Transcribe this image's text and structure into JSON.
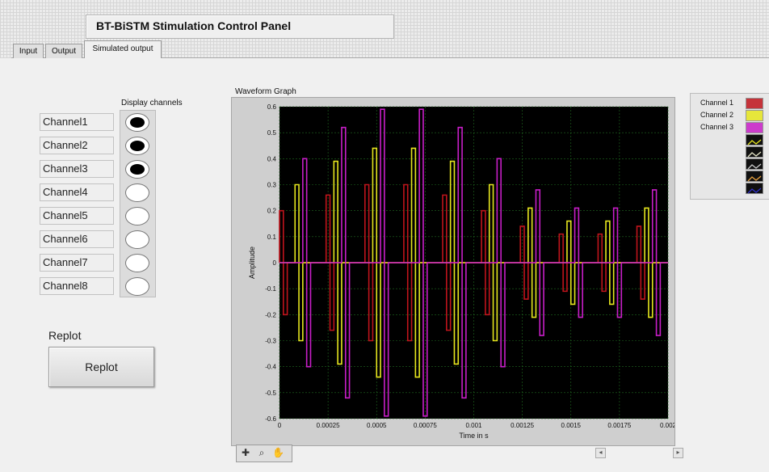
{
  "window": {
    "title": "BT-BiSTM Stimulation Control Panel"
  },
  "tabs": [
    {
      "label": "Input",
      "active": false
    },
    {
      "label": "Output",
      "active": false
    },
    {
      "label": "Simulated output",
      "active": true
    }
  ],
  "display_channels": {
    "label": "Display channels",
    "channels": [
      {
        "label": "Channel1",
        "on": true
      },
      {
        "label": "Channel2",
        "on": true
      },
      {
        "label": "Channel3",
        "on": true
      },
      {
        "label": "Channel4",
        "on": false
      },
      {
        "label": "Channel5",
        "on": false
      },
      {
        "label": "Channel6",
        "on": false
      },
      {
        "label": "Channel7",
        "on": false
      },
      {
        "label": "Channel8",
        "on": false
      }
    ]
  },
  "replot": {
    "label": "Replot",
    "button_label": "Replot"
  },
  "legend": {
    "entries": [
      {
        "name": "Channel 1",
        "color": "#c0141c"
      },
      {
        "name": "Channel 2",
        "color": "#e6e61e"
      },
      {
        "name": "Channel 3",
        "color": "#c81ec8"
      },
      {
        "name": "",
        "color": "#e6e61e"
      },
      {
        "name": "",
        "color": "#e6e6c8"
      },
      {
        "name": "",
        "color": "#c8c8c8"
      },
      {
        "name": "",
        "color": "#e6a03c"
      },
      {
        "name": "",
        "color": "#3232c8"
      }
    ]
  },
  "toolbar": {
    "icons": [
      "cursor-crosshair-icon",
      "zoom-icon",
      "pan-hand-icon"
    ]
  },
  "chart_data": {
    "type": "line",
    "title": "Waveform Graph",
    "xlabel": "Time in s",
    "ylabel": "Amplitude",
    "xlim": [
      0,
      0.002
    ],
    "ylim": [
      -0.6,
      0.6
    ],
    "x_ticks": [
      "0",
      "0.00025",
      "0.0005",
      "0.00075",
      "0.001",
      "0.00125",
      "0.0015",
      "0.00175",
      "0.002"
    ],
    "y_ticks": [
      "0.6",
      "0.5",
      "0.4",
      "0.3",
      "0.2",
      "0.1",
      "0",
      "-0.1",
      "-0.2",
      "-0.3",
      "-0.4",
      "-0.5",
      "-0.6"
    ],
    "grid": true,
    "background": "#000000",
    "grid_color": "#1f6a1f",
    "series": [
      {
        "name": "Channel 1",
        "color": "#c0141c",
        "pulses": [
          [
            0.0,
            0.2
          ],
          [
            0.00024,
            0.26
          ],
          [
            0.00044,
            0.3
          ],
          [
            0.00064,
            0.3
          ],
          [
            0.00084,
            0.26
          ],
          [
            0.00104,
            0.2
          ],
          [
            0.00124,
            0.14
          ],
          [
            0.00144,
            0.11
          ],
          [
            0.00164,
            0.11
          ],
          [
            0.00184,
            0.14
          ]
        ],
        "pulse_width_s": 2e-05
      },
      {
        "name": "Channel 2",
        "color": "#e6e61e",
        "pulses": [
          [
            8e-05,
            0.3
          ],
          [
            0.00028,
            0.39
          ],
          [
            0.00048,
            0.44
          ],
          [
            0.00068,
            0.44
          ],
          [
            0.00088,
            0.39
          ],
          [
            0.00108,
            0.3
          ],
          [
            0.00128,
            0.21
          ],
          [
            0.00148,
            0.16
          ],
          [
            0.00168,
            0.16
          ],
          [
            0.00188,
            0.21
          ]
        ],
        "pulse_width_s": 2e-05
      },
      {
        "name": "Channel 3",
        "color": "#c81ec8",
        "pulses": [
          [
            0.00012,
            0.4
          ],
          [
            0.00032,
            0.52
          ],
          [
            0.00052,
            0.59
          ],
          [
            0.00072,
            0.59
          ],
          [
            0.00092,
            0.52
          ],
          [
            0.00112,
            0.4
          ],
          [
            0.00132,
            0.28
          ],
          [
            0.00152,
            0.21
          ],
          [
            0.00172,
            0.21
          ],
          [
            0.00192,
            0.28
          ]
        ],
        "pulse_width_s": 2e-05
      }
    ]
  }
}
